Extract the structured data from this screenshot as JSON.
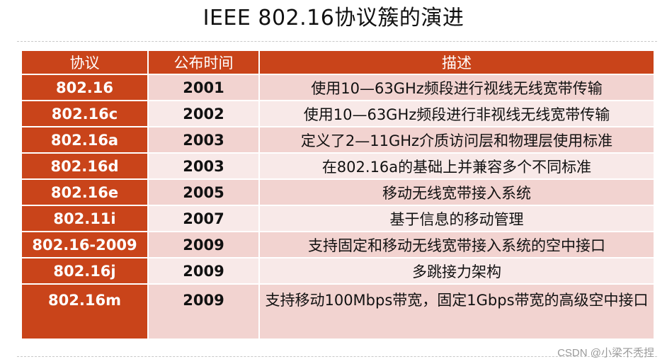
{
  "title": "IEEE 802.16协议簇的演进",
  "table": {
    "headers": [
      "协议",
      "公布时间",
      "描述"
    ],
    "rows": [
      {
        "protocol": "802.16",
        "year": "2001",
        "description": "使用10—63GHz频段进行视线无线宽带传输"
      },
      {
        "protocol": "802.16c",
        "year": "2002",
        "description": "使用10—63GHz频段进行非视线无线宽带传输"
      },
      {
        "protocol": "802.16a",
        "year": "2003",
        "description": "定义了2—11GHz介质访问层和物理层使用标准"
      },
      {
        "protocol": "802.16d",
        "year": "2003",
        "description": "在802.16a的基础上并兼容多个不同标准"
      },
      {
        "protocol": "802.16e",
        "year": "2005",
        "description": "移动无线宽带接入系统"
      },
      {
        "protocol": "802.11i",
        "year": "2007",
        "description": "基于信息的移动管理"
      },
      {
        "protocol": "802.16-2009",
        "year": "2009",
        "description": "支持固定和移动无线宽带接入系统的空中接口"
      },
      {
        "protocol": "802.16j",
        "year": "2009",
        "description": "多跳接力架构"
      },
      {
        "protocol": "802.16m",
        "year": "2009",
        "description": "支持移动100Mbps带宽，固定1Gbps带宽的高级空中接口"
      }
    ]
  },
  "watermark": "CSDN @小梁不秃捏",
  "colors": {
    "header_bg": "#c9441a",
    "row_odd_bg": "#f2d3d0",
    "row_even_bg": "#f8e9e8"
  }
}
